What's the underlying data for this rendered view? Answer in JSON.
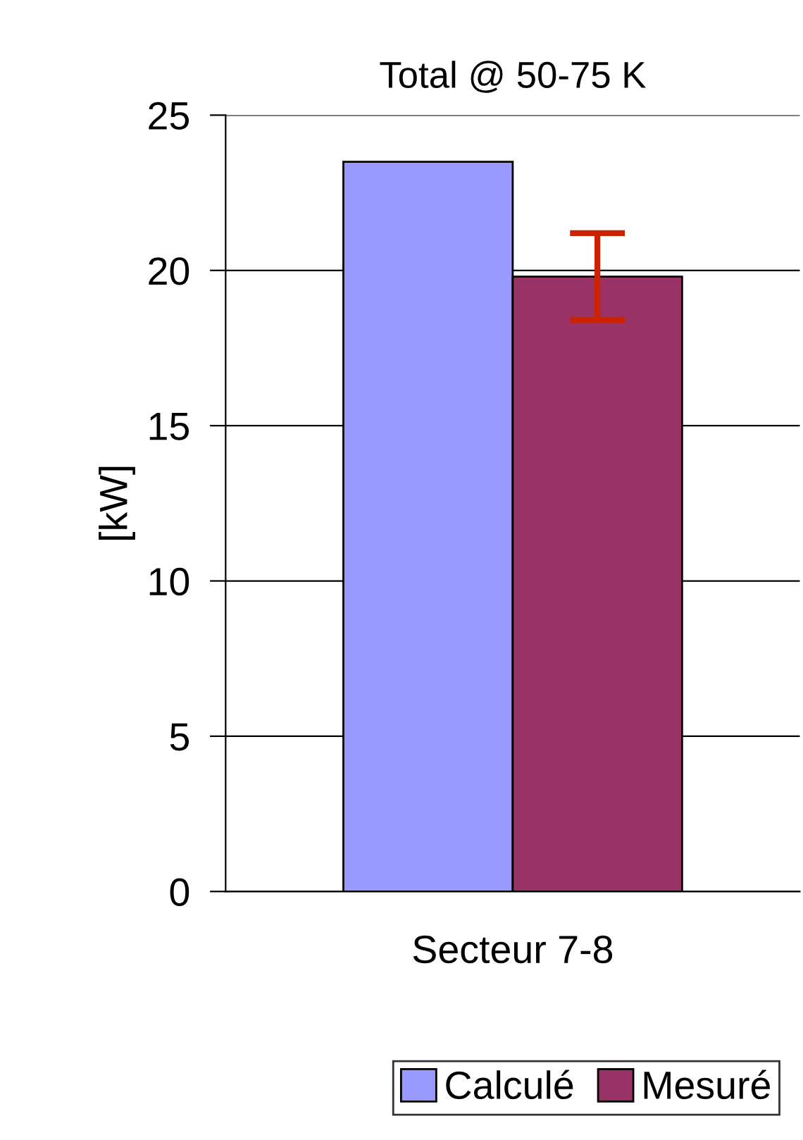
{
  "chart_data": {
    "type": "bar",
    "title": "Total @ 50-75 K",
    "ylabel": "[kW]",
    "categories": [
      "Secteur 7-8"
    ],
    "series": [
      {
        "name": "Calculé",
        "color": "#9999ff",
        "values": [
          23.5
        ]
      },
      {
        "name": "Mesuré",
        "color": "#993366",
        "values": [
          19.8
        ],
        "errors": [
          1.4
        ]
      }
    ],
    "ylim": [
      0,
      25
    ],
    "yticks": [
      0,
      5,
      10,
      15,
      20,
      25
    ],
    "grid": "y",
    "legend": "bottom"
  }
}
